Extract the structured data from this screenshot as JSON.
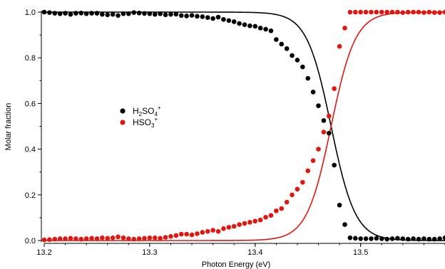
{
  "chart_data": {
    "type": "scatter",
    "title": "",
    "xlabel": "Photon Energy (eV)",
    "ylabel": "Molar fraction",
    "xlim": [
      13.2,
      13.58
    ],
    "ylim": [
      0.0,
      1.0
    ],
    "x_ticks": [
      13.2,
      13.3,
      13.4,
      13.5
    ],
    "x_tick_labels": [
      "13.2",
      "13.3",
      "13.4",
      "13.5"
    ],
    "y_ticks": [
      0.0,
      0.2,
      0.4,
      0.6,
      0.8,
      1.0
    ],
    "y_tick_labels": [
      "0.0",
      "0.2",
      "0.4",
      "0.6",
      "0.8",
      "1.0"
    ],
    "grid": false,
    "legend_position": "center-left",
    "series": [
      {
        "name": "H2SO4+",
        "label_base": "H",
        "label_sub1": "2",
        "label_mid": "SO",
        "label_sub2": "4",
        "label_sup": "+",
        "color": "#000000",
        "x": [
          13.2,
          13.205,
          13.21,
          13.215,
          13.22,
          13.225,
          13.23,
          13.235,
          13.24,
          13.245,
          13.25,
          13.255,
          13.26,
          13.265,
          13.27,
          13.275,
          13.28,
          13.285,
          13.29,
          13.295,
          13.3,
          13.305,
          13.31,
          13.315,
          13.32,
          13.325,
          13.33,
          13.335,
          13.34,
          13.345,
          13.35,
          13.355,
          13.36,
          13.365,
          13.37,
          13.375,
          13.38,
          13.385,
          13.39,
          13.395,
          13.4,
          13.405,
          13.41,
          13.415,
          13.42,
          13.425,
          13.43,
          13.435,
          13.44,
          13.445,
          13.45,
          13.455,
          13.46,
          13.465,
          13.47,
          13.475,
          13.48,
          13.485,
          13.49,
          13.495,
          13.5,
          13.505,
          13.51,
          13.515,
          13.52,
          13.525,
          13.53,
          13.535,
          13.54,
          13.545,
          13.55,
          13.555,
          13.56,
          13.565,
          13.57,
          13.575,
          13.58
        ],
        "y": [
          1.0,
          0.998,
          0.995,
          0.993,
          0.995,
          0.99,
          0.995,
          0.996,
          0.993,
          0.995,
          0.995,
          0.99,
          0.988,
          0.99,
          0.985,
          0.993,
          0.993,
          0.998,
          0.996,
          0.994,
          0.993,
          0.99,
          0.993,
          0.988,
          0.99,
          0.991,
          0.985,
          0.983,
          0.986,
          0.982,
          0.98,
          0.976,
          0.972,
          0.978,
          0.968,
          0.963,
          0.958,
          0.95,
          0.945,
          0.94,
          0.938,
          0.93,
          0.925,
          0.918,
          0.88,
          0.86,
          0.84,
          0.81,
          0.79,
          0.76,
          0.71,
          0.65,
          0.59,
          0.525,
          0.47,
          0.33,
          0.155,
          0.07,
          0.012,
          0.01,
          0.008,
          0.008,
          0.008,
          0.01,
          0.008,
          0.006,
          0.008,
          0.01,
          0.008,
          0.006,
          0.008,
          0.006,
          0.008,
          0.006,
          0.006,
          0.008,
          0.012
        ]
      },
      {
        "name": "HSO3+",
        "label_base": "HSO",
        "label_sub1": "3",
        "label_sup": "+",
        "color": "#e3150f",
        "x": [
          13.2,
          13.205,
          13.21,
          13.215,
          13.22,
          13.225,
          13.23,
          13.235,
          13.24,
          13.245,
          13.25,
          13.255,
          13.26,
          13.265,
          13.27,
          13.275,
          13.28,
          13.285,
          13.29,
          13.295,
          13.3,
          13.305,
          13.31,
          13.315,
          13.32,
          13.325,
          13.33,
          13.335,
          13.34,
          13.345,
          13.35,
          13.355,
          13.36,
          13.365,
          13.37,
          13.375,
          13.38,
          13.385,
          13.39,
          13.395,
          13.4,
          13.405,
          13.41,
          13.415,
          13.42,
          13.425,
          13.43,
          13.435,
          13.44,
          13.445,
          13.45,
          13.455,
          13.46,
          13.465,
          13.47,
          13.475,
          13.48,
          13.485,
          13.49,
          13.495,
          13.5,
          13.505,
          13.51,
          13.515,
          13.52,
          13.525,
          13.53,
          13.535,
          13.54,
          13.545,
          13.55,
          13.555,
          13.56,
          13.565,
          13.57,
          13.575,
          13.58
        ],
        "y": [
          0.003,
          0.004,
          0.006,
          0.008,
          0.008,
          0.01,
          0.008,
          0.006,
          0.008,
          0.01,
          0.008,
          0.012,
          0.01,
          0.012,
          0.016,
          0.012,
          0.008,
          0.006,
          0.008,
          0.01,
          0.012,
          0.012,
          0.01,
          0.014,
          0.018,
          0.022,
          0.028,
          0.028,
          0.025,
          0.03,
          0.036,
          0.04,
          0.045,
          0.04,
          0.052,
          0.058,
          0.062,
          0.07,
          0.075,
          0.08,
          0.085,
          0.09,
          0.102,
          0.11,
          0.13,
          0.14,
          0.168,
          0.2,
          0.225,
          0.255,
          0.305,
          0.35,
          0.4,
          0.475,
          0.545,
          0.665,
          0.85,
          0.93,
          1.0,
          1.0,
          1.0,
          1.0,
          1.0,
          1.0,
          1.0,
          1.0,
          1.0,
          1.0,
          0.998,
          1.0,
          1.0,
          1.0,
          0.998,
          1.0,
          0.998,
          0.998,
          1.0
        ]
      }
    ]
  }
}
